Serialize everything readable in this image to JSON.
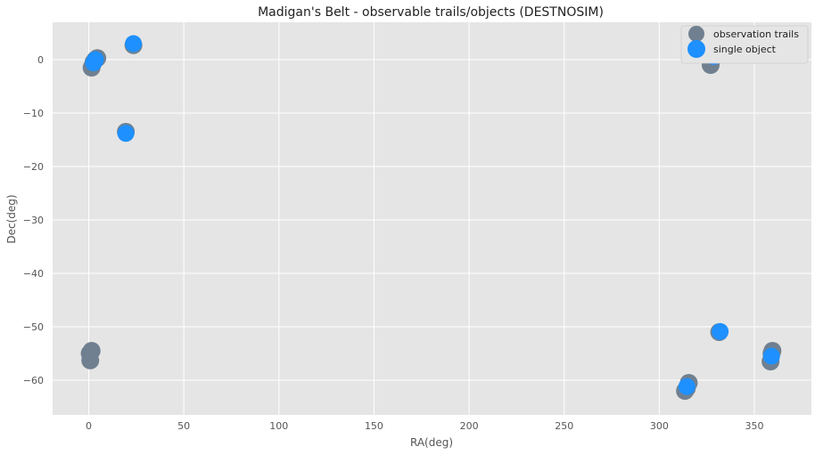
{
  "chart_data": {
    "type": "scatter",
    "title": "Madigan's Belt - observable trails/objects (DESTNOSIM)",
    "xlabel": "RA(deg)",
    "ylabel": "Dec(deg)",
    "xlim": [
      -19,
      380
    ],
    "ylim": [
      -66.5,
      7
    ],
    "xticks": [
      0,
      50,
      100,
      150,
      200,
      250,
      300,
      350
    ],
    "yticks": [
      0,
      -10,
      -20,
      -30,
      -40,
      -50,
      -60
    ],
    "grid": true,
    "legend_position": "top-right",
    "series": [
      {
        "name": "observation trails",
        "color": "#708090",
        "points": [
          [
            1.5,
            -1.5
          ],
          [
            2.5,
            -0.5
          ],
          [
            3.5,
            0.0
          ],
          [
            4.5,
            0.3
          ],
          [
            23.5,
            2.7
          ],
          [
            19.5,
            -13.5
          ],
          [
            0.5,
            -55.0
          ],
          [
            1.5,
            -54.5
          ],
          [
            0.8,
            -56.3
          ],
          [
            327.0,
            -1.0
          ],
          [
            328.0,
            0.2
          ],
          [
            331.5,
            -51.0
          ],
          [
            313.5,
            -62.0
          ],
          [
            314.5,
            -61.5
          ],
          [
            315.5,
            -60.5
          ],
          [
            358.5,
            -56.5
          ],
          [
            359.0,
            -55.0
          ],
          [
            359.5,
            -54.5
          ]
        ]
      },
      {
        "name": "single object",
        "color": "#1E90FF",
        "points": [
          [
            2.5,
            -0.6
          ],
          [
            3.5,
            0.0
          ],
          [
            23.5,
            3.0
          ],
          [
            19.5,
            -13.8
          ],
          [
            328.5,
            0.6
          ],
          [
            332.0,
            -50.9
          ],
          [
            314.5,
            -61.2
          ],
          [
            359.0,
            -55.5
          ]
        ]
      }
    ]
  }
}
